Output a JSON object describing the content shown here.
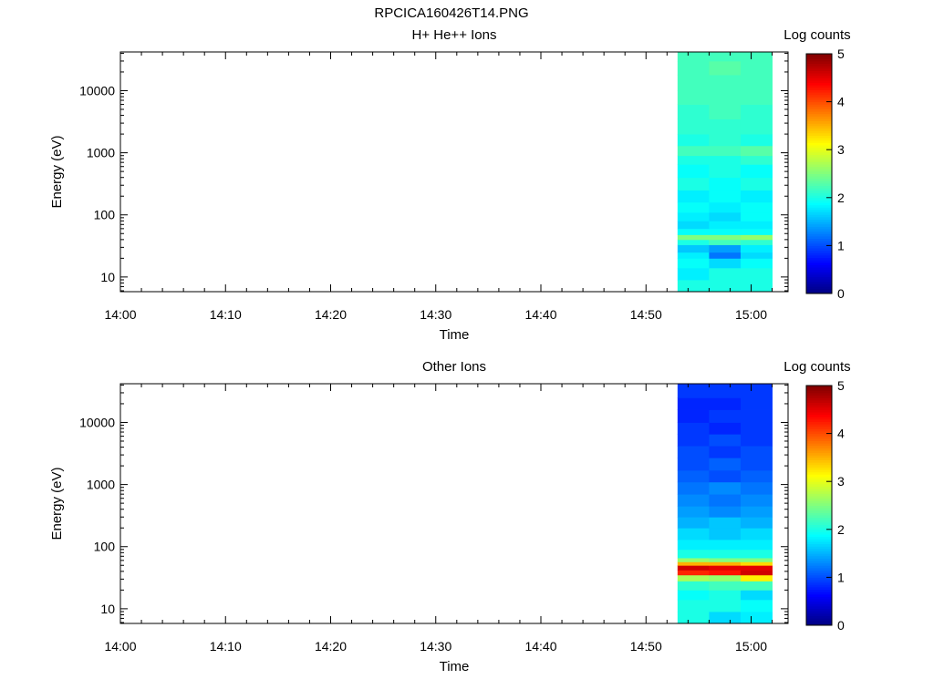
{
  "figure_title": "RPCICA160426T14.PNG",
  "chart_data": [
    {
      "type": "heatmap",
      "title": "H+ He++ Ions",
      "xlabel": "Time",
      "ylabel": "Energy (eV)",
      "yscale": "log",
      "ylim": [
        5.8,
        42000
      ],
      "x_ticks": [
        "14:00",
        "14:10",
        "14:20",
        "14:30",
        "14:40",
        "14:50",
        "15:00"
      ],
      "y_ticks": [
        "10",
        "100",
        "1000",
        "10000"
      ],
      "colorbar": {
        "label": "Log counts",
        "range": [
          0,
          5
        ],
        "ticks": [
          "0",
          "1",
          "2",
          "3",
          "4",
          "5"
        ]
      },
      "time_bins": [
        "14:53",
        "14:56",
        "14:59"
      ],
      "time_end": "15:02",
      "energy_rows": [
        {
          "e_low": 5.8,
          "e_high": 9,
          "values": [
            2.0,
            2.0,
            2.0
          ]
        },
        {
          "e_low": 9,
          "e_high": 14,
          "values": [
            1.8,
            2.0,
            2.0
          ]
        },
        {
          "e_low": 14,
          "e_high": 20,
          "values": [
            1.9,
            1.7,
            1.9
          ]
        },
        {
          "e_low": 20,
          "e_high": 25,
          "values": [
            1.8,
            1.2,
            1.7
          ]
        },
        {
          "e_low": 25,
          "e_high": 33,
          "values": [
            1.6,
            1.4,
            1.8
          ]
        },
        {
          "e_low": 33,
          "e_high": 40,
          "values": [
            2.0,
            2.2,
            2.1
          ]
        },
        {
          "e_low": 40,
          "e_high": 48,
          "values": [
            2.5,
            2.5,
            2.6
          ]
        },
        {
          "e_low": 48,
          "e_high": 60,
          "values": [
            1.9,
            1.9,
            1.9
          ]
        },
        {
          "e_low": 60,
          "e_high": 80,
          "values": [
            1.7,
            1.8,
            1.8
          ]
        },
        {
          "e_low": 80,
          "e_high": 110,
          "values": [
            1.8,
            1.7,
            1.9
          ]
        },
        {
          "e_low": 110,
          "e_high": 160,
          "values": [
            1.9,
            1.8,
            1.9
          ]
        },
        {
          "e_low": 160,
          "e_high": 250,
          "values": [
            1.8,
            1.9,
            1.8
          ]
        },
        {
          "e_low": 250,
          "e_high": 400,
          "values": [
            2.0,
            1.9,
            2.0
          ]
        },
        {
          "e_low": 400,
          "e_high": 650,
          "values": [
            1.9,
            2.0,
            1.9
          ]
        },
        {
          "e_low": 650,
          "e_high": 900,
          "values": [
            2.0,
            2.0,
            2.1
          ]
        },
        {
          "e_low": 900,
          "e_high": 1300,
          "values": [
            2.2,
            2.2,
            2.3
          ]
        },
        {
          "e_low": 1300,
          "e_high": 2000,
          "values": [
            2.0,
            2.1,
            2.0
          ]
        },
        {
          "e_low": 2000,
          "e_high": 3500,
          "values": [
            2.1,
            2.1,
            2.1
          ]
        },
        {
          "e_low": 3500,
          "e_high": 6000,
          "values": [
            2.1,
            2.2,
            2.1
          ]
        },
        {
          "e_low": 6000,
          "e_high": 10000,
          "values": [
            2.2,
            2.2,
            2.2
          ]
        },
        {
          "e_low": 10000,
          "e_high": 18000,
          "values": [
            2.2,
            2.2,
            2.2
          ]
        },
        {
          "e_low": 18000,
          "e_high": 30000,
          "values": [
            2.2,
            2.3,
            2.2
          ]
        },
        {
          "e_low": 30000,
          "e_high": 42000,
          "values": [
            2.2,
            2.2,
            2.2
          ]
        }
      ]
    },
    {
      "type": "heatmap",
      "title": "Other Ions",
      "xlabel": "Time",
      "ylabel": "Energy (eV)",
      "yscale": "log",
      "ylim": [
        5.8,
        42000
      ],
      "x_ticks": [
        "14:00",
        "14:10",
        "14:20",
        "14:30",
        "14:40",
        "14:50",
        "15:00"
      ],
      "y_ticks": [
        "10",
        "100",
        "1000",
        "10000"
      ],
      "colorbar": {
        "label": "Log counts",
        "range": [
          0,
          5
        ],
        "ticks": [
          "0",
          "1",
          "2",
          "3",
          "4",
          "5"
        ]
      },
      "time_bins": [
        "14:53",
        "14:56",
        "14:59"
      ],
      "time_end": "15:02",
      "energy_rows": [
        {
          "e_low": 5.8,
          "e_high": 9,
          "values": [
            2.0,
            1.7,
            1.8
          ]
        },
        {
          "e_low": 9,
          "e_high": 14,
          "values": [
            2.0,
            2.0,
            1.9
          ]
        },
        {
          "e_low": 14,
          "e_high": 20,
          "values": [
            1.9,
            2.0,
            1.7
          ]
        },
        {
          "e_low": 20,
          "e_high": 28,
          "values": [
            2.1,
            2.2,
            2.2
          ]
        },
        {
          "e_low": 28,
          "e_high": 35,
          "values": [
            2.7,
            2.6,
            3.2
          ]
        },
        {
          "e_low": 35,
          "e_high": 42,
          "values": [
            4.2,
            4.3,
            4.6
          ]
        },
        {
          "e_low": 42,
          "e_high": 50,
          "values": [
            4.6,
            4.5,
            4.5
          ]
        },
        {
          "e_low": 50,
          "e_high": 57,
          "values": [
            3.5,
            3.5,
            3.3
          ]
        },
        {
          "e_low": 57,
          "e_high": 66,
          "values": [
            2.6,
            2.5,
            2.5
          ]
        },
        {
          "e_low": 66,
          "e_high": 90,
          "values": [
            2.0,
            2.0,
            2.0
          ]
        },
        {
          "e_low": 90,
          "e_high": 130,
          "values": [
            1.8,
            1.8,
            1.8
          ]
        },
        {
          "e_low": 130,
          "e_high": 200,
          "values": [
            1.7,
            1.6,
            1.7
          ]
        },
        {
          "e_low": 200,
          "e_high": 300,
          "values": [
            1.5,
            1.6,
            1.5
          ]
        },
        {
          "e_low": 300,
          "e_high": 450,
          "values": [
            1.4,
            1.3,
            1.4
          ]
        },
        {
          "e_low": 450,
          "e_high": 700,
          "values": [
            1.3,
            1.2,
            1.3
          ]
        },
        {
          "e_low": 700,
          "e_high": 1100,
          "values": [
            1.2,
            1.3,
            1.2
          ]
        },
        {
          "e_low": 1100,
          "e_high": 1700,
          "values": [
            1.1,
            1.0,
            1.1
          ]
        },
        {
          "e_low": 1700,
          "e_high": 2700,
          "values": [
            1.0,
            1.1,
            1.0
          ]
        },
        {
          "e_low": 2700,
          "e_high": 4200,
          "values": [
            1.0,
            0.9,
            1.0
          ]
        },
        {
          "e_low": 4200,
          "e_high": 6500,
          "values": [
            0.9,
            1.0,
            0.9
          ]
        },
        {
          "e_low": 6500,
          "e_high": 10000,
          "values": [
            0.9,
            0.8,
            0.9
          ]
        },
        {
          "e_low": 10000,
          "e_high": 16000,
          "values": [
            0.8,
            0.9,
            0.9
          ]
        },
        {
          "e_low": 16000,
          "e_high": 25000,
          "values": [
            0.8,
            0.8,
            0.9
          ]
        },
        {
          "e_low": 25000,
          "e_high": 42000,
          "values": [
            0.9,
            0.9,
            0.9
          ]
        }
      ]
    }
  ]
}
